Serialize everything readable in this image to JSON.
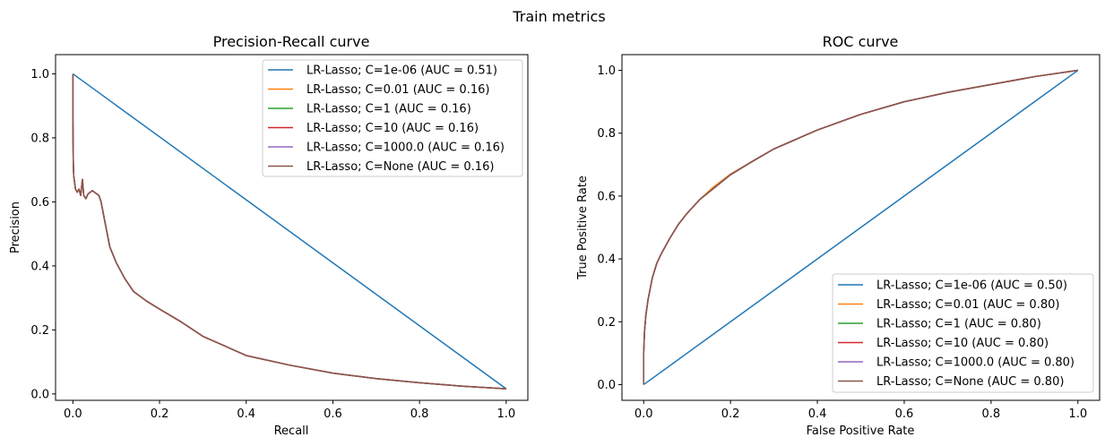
{
  "suptitle": "Train metrics",
  "colors": {
    "blue": "#1f77b4",
    "orange": "#ff7f0e",
    "green": "#2ca02c",
    "red": "#d62728",
    "purple": "#9467bd",
    "brown": "#8c564b"
  },
  "chart_data": [
    {
      "type": "line",
      "title": "Precision-Recall curve",
      "xlabel": "Recall",
      "ylabel": "Precision",
      "xlim": [
        -0.04,
        1.05
      ],
      "ylim": [
        -0.02,
        1.06
      ],
      "xticks": [
        "0.0",
        "0.2",
        "0.4",
        "0.6",
        "0.8",
        "1.0"
      ],
      "yticks": [
        "0.0",
        "0.2",
        "0.4",
        "0.6",
        "0.8",
        "1.0"
      ],
      "legend_position": "top-right",
      "grid": false,
      "series": [
        {
          "name": "LR-Lasso; C=1e-06 (AUC = 0.51)",
          "color": "#1f77b4",
          "x": [
            0.0,
            1.0
          ],
          "y": [
            1.0,
            0.016
          ]
        },
        {
          "name": "LR-Lasso; C=0.01 (AUC = 0.16)",
          "color": "#ff7f0e",
          "x": [
            0.0,
            0.0,
            0.001,
            0.002,
            0.004,
            0.006,
            0.01,
            0.014,
            0.018,
            0.022,
            0.025,
            0.03,
            0.035,
            0.04,
            0.045,
            0.05,
            0.055,
            0.06,
            0.065,
            0.075,
            0.085,
            0.1,
            0.12,
            0.14,
            0.17,
            0.2,
            0.25,
            0.3,
            0.35,
            0.4,
            0.5,
            0.6,
            0.7,
            0.8,
            0.9,
            1.0
          ],
          "y": [
            1.0,
            0.85,
            0.72,
            0.68,
            0.66,
            0.64,
            0.63,
            0.64,
            0.62,
            0.67,
            0.62,
            0.61,
            0.625,
            0.63,
            0.635,
            0.63,
            0.625,
            0.62,
            0.6,
            0.53,
            0.46,
            0.41,
            0.36,
            0.32,
            0.29,
            0.265,
            0.225,
            0.18,
            0.15,
            0.12,
            0.09,
            0.065,
            0.048,
            0.035,
            0.024,
            0.016
          ]
        },
        {
          "name": "LR-Lasso; C=1 (AUC = 0.16)",
          "color": "#2ca02c",
          "x": [
            0.0,
            0.0,
            0.001,
            0.002,
            0.004,
            0.006,
            0.01,
            0.014,
            0.018,
            0.022,
            0.025,
            0.03,
            0.035,
            0.04,
            0.045,
            0.05,
            0.055,
            0.06,
            0.065,
            0.075,
            0.085,
            0.1,
            0.12,
            0.14,
            0.17,
            0.2,
            0.25,
            0.3,
            0.35,
            0.4,
            0.5,
            0.6,
            0.7,
            0.8,
            0.9,
            1.0
          ],
          "y": [
            1.0,
            0.85,
            0.72,
            0.68,
            0.66,
            0.64,
            0.63,
            0.64,
            0.62,
            0.67,
            0.62,
            0.61,
            0.625,
            0.63,
            0.635,
            0.63,
            0.625,
            0.62,
            0.6,
            0.53,
            0.46,
            0.41,
            0.36,
            0.32,
            0.29,
            0.265,
            0.225,
            0.18,
            0.15,
            0.12,
            0.09,
            0.065,
            0.048,
            0.035,
            0.024,
            0.016
          ]
        },
        {
          "name": "LR-Lasso; C=10 (AUC = 0.16)",
          "color": "#d62728",
          "x": [
            0.0,
            0.0,
            0.001,
            0.002,
            0.004,
            0.006,
            0.01,
            0.014,
            0.018,
            0.022,
            0.025,
            0.03,
            0.035,
            0.04,
            0.045,
            0.05,
            0.055,
            0.06,
            0.065,
            0.075,
            0.085,
            0.1,
            0.12,
            0.14,
            0.17,
            0.2,
            0.25,
            0.3,
            0.35,
            0.4,
            0.5,
            0.6,
            0.7,
            0.8,
            0.9,
            1.0
          ],
          "y": [
            1.0,
            0.85,
            0.72,
            0.68,
            0.66,
            0.64,
            0.63,
            0.64,
            0.62,
            0.67,
            0.62,
            0.61,
            0.625,
            0.63,
            0.635,
            0.63,
            0.625,
            0.62,
            0.6,
            0.53,
            0.46,
            0.41,
            0.36,
            0.32,
            0.29,
            0.265,
            0.225,
            0.18,
            0.15,
            0.12,
            0.09,
            0.065,
            0.048,
            0.035,
            0.024,
            0.016
          ]
        },
        {
          "name": "LR-Lasso; C=1000.0 (AUC = 0.16)",
          "color": "#9467bd",
          "x": [
            0.0,
            0.0,
            0.001,
            0.002,
            0.004,
            0.006,
            0.01,
            0.014,
            0.018,
            0.022,
            0.025,
            0.03,
            0.035,
            0.04,
            0.045,
            0.05,
            0.055,
            0.06,
            0.065,
            0.075,
            0.085,
            0.1,
            0.12,
            0.14,
            0.17,
            0.2,
            0.25,
            0.3,
            0.35,
            0.4,
            0.5,
            0.6,
            0.7,
            0.8,
            0.9,
            1.0
          ],
          "y": [
            1.0,
            0.85,
            0.72,
            0.68,
            0.66,
            0.64,
            0.63,
            0.64,
            0.62,
            0.67,
            0.62,
            0.61,
            0.625,
            0.63,
            0.635,
            0.63,
            0.625,
            0.62,
            0.6,
            0.53,
            0.46,
            0.41,
            0.36,
            0.32,
            0.29,
            0.265,
            0.225,
            0.18,
            0.15,
            0.12,
            0.09,
            0.065,
            0.048,
            0.035,
            0.024,
            0.016
          ]
        },
        {
          "name": "LR-Lasso; C=None (AUC = 0.16)",
          "color": "#8c564b",
          "x": [
            0.0,
            0.0,
            0.001,
            0.002,
            0.004,
            0.006,
            0.01,
            0.014,
            0.018,
            0.022,
            0.025,
            0.03,
            0.035,
            0.04,
            0.045,
            0.05,
            0.055,
            0.06,
            0.065,
            0.075,
            0.085,
            0.1,
            0.12,
            0.14,
            0.17,
            0.2,
            0.25,
            0.3,
            0.35,
            0.4,
            0.5,
            0.6,
            0.7,
            0.8,
            0.9,
            1.0
          ],
          "y": [
            1.0,
            0.85,
            0.72,
            0.68,
            0.66,
            0.64,
            0.63,
            0.64,
            0.62,
            0.67,
            0.62,
            0.61,
            0.625,
            0.63,
            0.635,
            0.63,
            0.625,
            0.62,
            0.6,
            0.53,
            0.46,
            0.41,
            0.36,
            0.32,
            0.29,
            0.265,
            0.225,
            0.18,
            0.15,
            0.12,
            0.09,
            0.065,
            0.048,
            0.035,
            0.024,
            0.016
          ]
        }
      ]
    },
    {
      "type": "line",
      "title": "ROC curve",
      "xlabel": "False Positive Rate",
      "ylabel": "True Positive Rate",
      "xlim": [
        -0.05,
        1.05
      ],
      "ylim": [
        -0.05,
        1.05
      ],
      "xticks": [
        "0.0",
        "0.2",
        "0.4",
        "0.6",
        "0.8",
        "1.0"
      ],
      "yticks": [
        "0.0",
        "0.2",
        "0.4",
        "0.6",
        "0.8",
        "1.0"
      ],
      "legend_position": "lower-right",
      "grid": false,
      "series": [
        {
          "name": "LR-Lasso; C=1e-06 (AUC = 0.50)",
          "color": "#1f77b4",
          "x": [
            0.0,
            1.0
          ],
          "y": [
            0.0,
            1.0
          ]
        },
        {
          "name": "LR-Lasso; C=0.01 (AUC = 0.80)",
          "color": "#ff7f0e",
          "x": [
            0.0,
            0.0,
            0.002,
            0.005,
            0.01,
            0.02,
            0.03,
            0.04,
            0.06,
            0.08,
            0.1,
            0.13,
            0.16,
            0.2,
            0.25,
            0.3,
            0.35,
            0.4,
            0.5,
            0.6,
            0.7,
            0.8,
            0.9,
            1.0
          ],
          "y": [
            0.0,
            0.1,
            0.17,
            0.22,
            0.27,
            0.34,
            0.385,
            0.415,
            0.465,
            0.51,
            0.545,
            0.59,
            0.628,
            0.67,
            0.71,
            0.75,
            0.78,
            0.81,
            0.86,
            0.9,
            0.93,
            0.955,
            0.98,
            1.0
          ]
        },
        {
          "name": "LR-Lasso; C=1 (AUC = 0.80)",
          "color": "#2ca02c",
          "x": [
            0.0,
            0.0,
            0.002,
            0.005,
            0.01,
            0.02,
            0.03,
            0.04,
            0.06,
            0.08,
            0.1,
            0.13,
            0.16,
            0.2,
            0.25,
            0.3,
            0.35,
            0.4,
            0.5,
            0.6,
            0.7,
            0.8,
            0.9,
            1.0
          ],
          "y": [
            0.0,
            0.1,
            0.17,
            0.22,
            0.27,
            0.34,
            0.385,
            0.415,
            0.465,
            0.51,
            0.545,
            0.59,
            0.623,
            0.668,
            0.71,
            0.75,
            0.78,
            0.81,
            0.86,
            0.9,
            0.93,
            0.955,
            0.98,
            1.0
          ]
        },
        {
          "name": "LR-Lasso; C=10 (AUC = 0.80)",
          "color": "#d62728",
          "x": [
            0.0,
            0.0,
            0.002,
            0.005,
            0.01,
            0.02,
            0.03,
            0.04,
            0.06,
            0.08,
            0.1,
            0.13,
            0.16,
            0.2,
            0.25,
            0.3,
            0.35,
            0.4,
            0.5,
            0.6,
            0.7,
            0.8,
            0.9,
            1.0
          ],
          "y": [
            0.0,
            0.1,
            0.17,
            0.22,
            0.27,
            0.34,
            0.385,
            0.415,
            0.465,
            0.51,
            0.545,
            0.59,
            0.623,
            0.668,
            0.71,
            0.75,
            0.78,
            0.81,
            0.86,
            0.9,
            0.93,
            0.955,
            0.98,
            1.0
          ]
        },
        {
          "name": "LR-Lasso; C=1000.0 (AUC = 0.80)",
          "color": "#9467bd",
          "x": [
            0.0,
            0.0,
            0.002,
            0.005,
            0.01,
            0.02,
            0.03,
            0.04,
            0.06,
            0.08,
            0.1,
            0.13,
            0.16,
            0.2,
            0.25,
            0.3,
            0.35,
            0.4,
            0.5,
            0.6,
            0.7,
            0.8,
            0.9,
            1.0
          ],
          "y": [
            0.0,
            0.1,
            0.17,
            0.22,
            0.27,
            0.34,
            0.385,
            0.415,
            0.465,
            0.51,
            0.545,
            0.59,
            0.623,
            0.668,
            0.71,
            0.75,
            0.78,
            0.81,
            0.86,
            0.9,
            0.93,
            0.955,
            0.98,
            1.0
          ]
        },
        {
          "name": "LR-Lasso; C=None (AUC = 0.80)",
          "color": "#8c564b",
          "x": [
            0.0,
            0.0,
            0.002,
            0.005,
            0.01,
            0.02,
            0.03,
            0.04,
            0.06,
            0.08,
            0.1,
            0.13,
            0.16,
            0.2,
            0.25,
            0.3,
            0.35,
            0.4,
            0.5,
            0.6,
            0.7,
            0.8,
            0.9,
            1.0
          ],
          "y": [
            0.0,
            0.1,
            0.17,
            0.22,
            0.27,
            0.34,
            0.385,
            0.415,
            0.465,
            0.51,
            0.545,
            0.59,
            0.623,
            0.668,
            0.71,
            0.75,
            0.78,
            0.81,
            0.86,
            0.9,
            0.93,
            0.955,
            0.98,
            1.0
          ]
        }
      ]
    }
  ]
}
